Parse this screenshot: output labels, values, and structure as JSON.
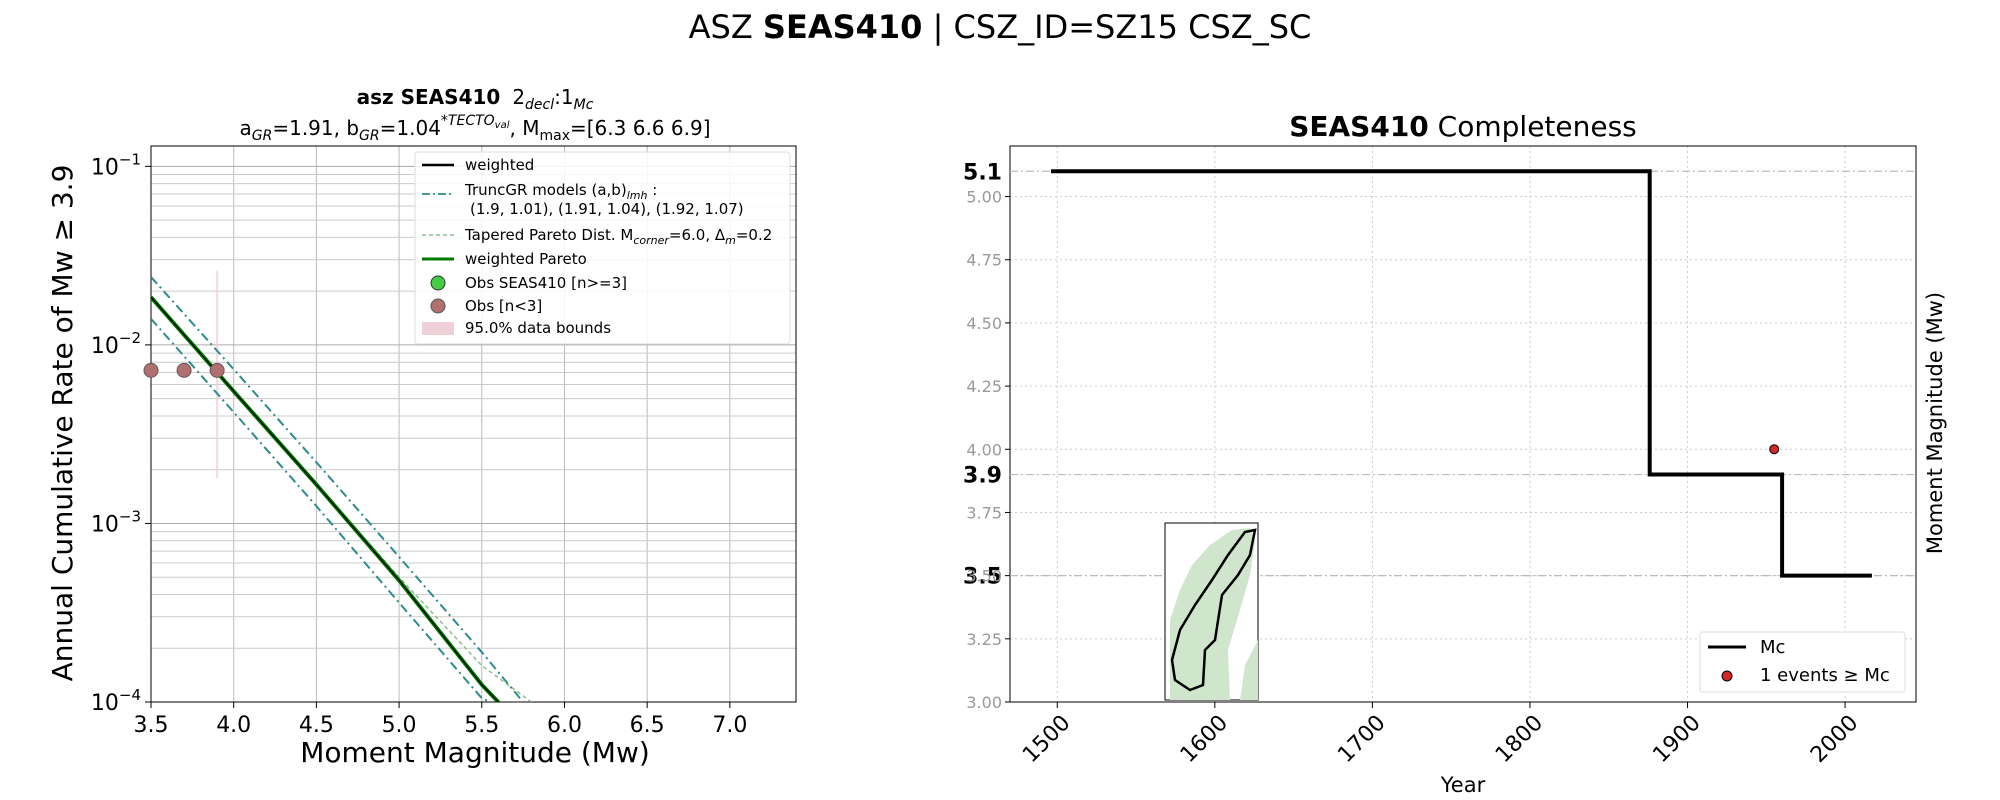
{
  "figure": {
    "suptitle_prefix": "ASZ",
    "suptitle_bold": "SEAS410",
    "suptitle_suffix": "| CSZ_ID=SZ15 CSZ_SC"
  },
  "colors": {
    "weighted": "#000000",
    "truncgr": "#2e8b8b",
    "tapered": "#8fbc8f",
    "pareto": "#007a00",
    "obs_main": "#44cc44",
    "obs_lt3": "#b07070",
    "bounds": "#f0d0d8",
    "mc": "#000000",
    "event": "#d62728"
  },
  "chart_data": [
    {
      "type": "line",
      "panel": "left",
      "title_line1_bold": "asz SEAS410",
      "title_line1_decl": "2",
      "title_line1_decl_sub": "decl",
      "title_line1_mc": ":1",
      "title_line1_mc_sub": "Mc",
      "title_line2_a": "a",
      "title_line2_a_sub": "GR",
      "title_line2_a_val": "=1.91,  b",
      "title_line2_b_sub": "GR",
      "title_line2_b_val": "=1.04",
      "title_line2_sup": "*TECTO",
      "title_line2_sup_sub": "val",
      "title_line2_mmax": ", M",
      "title_line2_mmax_sub": "max",
      "title_line2_mmax_val": "=[6.3 6.6 6.9]",
      "xlabel": "Moment Magnitude (Mw)",
      "ylabel": "Annual Cumulative Rate of Mw  ≥  3.9",
      "xlim": [
        3.5,
        7.4
      ],
      "ylim": [
        0.0001,
        0.13
      ],
      "yscale": "log",
      "x_ticks": [
        "3.5",
        "4.0",
        "4.5",
        "5.0",
        "5.5",
        "6.0",
        "6.5",
        "7.0"
      ],
      "y_ticks": [
        {
          "base": "10",
          "exp": "−1",
          "value": 0.1
        },
        {
          "base": "10",
          "exp": "−2",
          "value": 0.01
        },
        {
          "base": "10",
          "exp": "−3",
          "value": 0.001
        },
        {
          "base": "10",
          "exp": "−4",
          "value": 0.0001
        }
      ],
      "grid": true,
      "legend_position": "upper-right",
      "legend": [
        {
          "label": "weighted",
          "style": "solid-black"
        },
        {
          "label": "TruncGR models (a,b)",
          "sub": "lmh",
          "tail": " :",
          "line2": "(1.9, 1.01), (1.91, 1.04), (1.92, 1.07)",
          "style": "dashdot-teal"
        },
        {
          "label": "Tapered Pareto Dist. M",
          "sub": "corner",
          "tail": "=6.0, Δ",
          "sub2": "m",
          "tail2": "=0.2",
          "style": "dashed-lightgreen"
        },
        {
          "label": "weighted Pareto",
          "style": "solid-green"
        },
        {
          "label": "Obs SEAS410 [n>=3]",
          "style": "marker-green"
        },
        {
          "label": "Obs [n<3]",
          "style": "marker-brown"
        },
        {
          "label": "95.0% data bounds",
          "style": "patch-pink"
        }
      ],
      "series": [
        {
          "name": "weighted",
          "x": [
            3.5,
            4.0,
            4.5,
            5.0,
            5.5,
            5.6,
            5.7
          ],
          "y": [
            0.0185,
            0.0055,
            0.00165,
            0.00048,
            0.000125,
            0.0001,
            8e-05
          ]
        },
        {
          "name": "TruncGR models (a,b)lmh high",
          "x": [
            3.5,
            4.0,
            4.5,
            5.0,
            5.5,
            5.75
          ],
          "y": [
            0.024,
            0.0073,
            0.0022,
            0.00065,
            0.00019,
            0.0001
          ]
        },
        {
          "name": "TruncGR models (a,b)lmh low",
          "x": [
            3.5,
            4.0,
            4.5,
            5.0,
            5.5,
            5.55
          ],
          "y": [
            0.014,
            0.0042,
            0.00125,
            0.00036,
            0.000105,
            0.0001
          ]
        },
        {
          "name": "Tapered Pareto Dist.",
          "x": [
            3.5,
            4.0,
            4.5,
            5.0,
            5.5,
            5.8
          ],
          "y": [
            0.0185,
            0.0055,
            0.00165,
            0.0005,
            0.00016,
            0.0001
          ]
        },
        {
          "name": "weighted Pareto",
          "x": [
            3.5,
            4.0,
            4.5,
            5.0,
            5.5,
            5.6,
            5.7
          ],
          "y": [
            0.0185,
            0.0055,
            0.00165,
            0.00048,
            0.000125,
            0.0001,
            8e-05
          ]
        }
      ],
      "observations": [
        {
          "x": 3.5,
          "y": 0.0072
        },
        {
          "x": 3.7,
          "y": 0.0072
        },
        {
          "x": 3.9,
          "y": 0.0072
        }
      ]
    },
    {
      "type": "line",
      "panel": "right",
      "title_bold": "SEAS410",
      "title_rest": " Completeness",
      "xlabel": "Year",
      "ylabel": "Moment Magnitude (Mw)",
      "xlim": [
        1470,
        2045
      ],
      "ylim": [
        3.0,
        5.2
      ],
      "x_ticks": [
        "1500",
        "1600",
        "1700",
        "1800",
        "1900",
        "2000"
      ],
      "y_ticks": [
        "3.00",
        "3.25",
        "3.50",
        "3.75",
        "4.00",
        "4.25",
        "4.50",
        "4.75",
        "5.00"
      ],
      "mc_levels": [
        "5.1",
        "3.9",
        "3.5"
      ],
      "grid": true,
      "legend_position": "lower-right",
      "legend": [
        {
          "label": "Mc",
          "style": "solid-black"
        },
        {
          "label": "1 events  ≥  Mc",
          "style": "marker-red"
        }
      ],
      "series": [
        {
          "name": "Mc",
          "x": [
            1496,
            1876,
            1876,
            1960,
            1960,
            2017
          ],
          "y": [
            5.1,
            5.1,
            3.9,
            3.9,
            3.5,
            3.5
          ]
        }
      ],
      "events": [
        {
          "x": 1955,
          "y": 4.0
        }
      ]
    }
  ]
}
